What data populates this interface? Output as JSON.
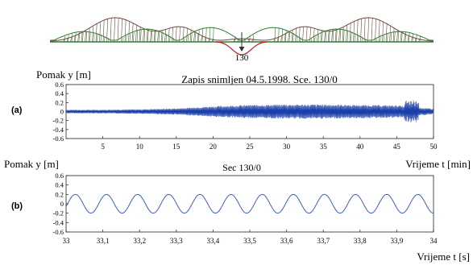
{
  "colors": {
    "signal": "#1a3fa8",
    "structure": "#2e7d32",
    "hatching": "#6d4c41",
    "deflection": "#b71c1c",
    "axis": "#222222"
  },
  "bridge": {
    "node_label": "130",
    "node_marker": "arrow-down-icon",
    "spans": 3
  },
  "chart_data": [
    {
      "id": "a",
      "panel_label": "(a)",
      "type": "line",
      "title": "Zapis snimljen 04.5.1998. Sce. 130/0",
      "ylabel": "Pomak y [m]",
      "xlabel": "Vrijeme t [min]",
      "xlim": [
        0,
        50
      ],
      "ylim": [
        -0.6,
        0.6
      ],
      "x_ticks": [
        "5",
        "10",
        "15",
        "20",
        "25",
        "30",
        "35",
        "40",
        "45",
        "50"
      ],
      "y_ticks": [
        "0.6",
        "0.4",
        "0.2",
        "0",
        "-0.2",
        "-0.4",
        "-0.6"
      ],
      "series": [
        {
          "x": [
            0,
            5,
            10,
            15,
            20,
            25,
            30,
            35,
            40,
            45,
            50
          ],
          "amplitude": [
            0.04,
            0.04,
            0.05,
            0.07,
            0.12,
            0.15,
            0.16,
            0.16,
            0.15,
            0.14,
            0.06
          ],
          "burst": {
            "x": [
              46,
              48
            ],
            "amplitude": 0.26
          }
        }
      ]
    },
    {
      "id": "b",
      "panel_label": "(b)",
      "type": "line",
      "title": "Sec 130/0",
      "ylabel": "Pomak y [m]",
      "xlabel": "Vrijeme t [s]",
      "xlim": [
        33,
        34
      ],
      "ylim": [
        -0.6,
        0.6
      ],
      "x_ticks": [
        "33",
        "33,1",
        "33,2",
        "33,3",
        "33,4",
        "33,5",
        "33,6",
        "33,7",
        "33,8",
        "33,9",
        "34"
      ],
      "y_ticks": [
        "0.6",
        "0.4",
        "0.2",
        "0",
        "-0.2",
        "-0.4",
        "-0.6"
      ],
      "series": [
        {
          "amplitude": 0.2,
          "offset": 0.0,
          "cycles": 11.8
        }
      ]
    }
  ]
}
